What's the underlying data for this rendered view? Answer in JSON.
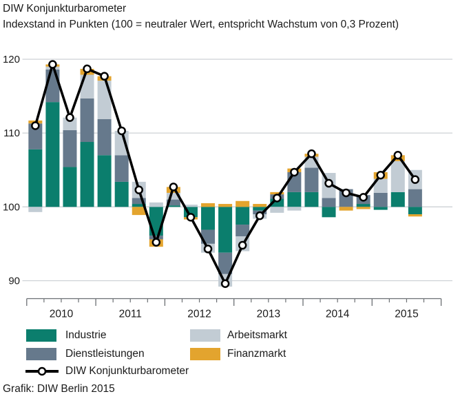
{
  "header": {
    "title": "DIW Konjunkturbarometer",
    "subtitle": "Indexstand in Punkten (100 = neutraler Wert, entspricht Wachstum von 0,3 Prozent)"
  },
  "footer": {
    "credit": "Grafik: DIW Berlin 2015"
  },
  "legend": {
    "items": [
      {
        "label": "Industrie",
        "color": "#0b7e6d"
      },
      {
        "label": "Dienstleistungen",
        "color": "#66798c"
      },
      {
        "label": "Arbeitsmarkt",
        "color": "#c2ccd4"
      },
      {
        "label": "Finanzmarkt",
        "color": "#e3a42e"
      }
    ],
    "line_item": {
      "label": "DIW Konjunkturbarometer",
      "color": "#000000"
    }
  },
  "chart_data": {
    "type": "bar",
    "subtype": "stacked-bars-with-line",
    "baseline": 100,
    "quarters": [
      "2010 Q1",
      "2010 Q2",
      "2010 Q3",
      "2010 Q4",
      "2011 Q1",
      "2011 Q2",
      "2011 Q3",
      "2011 Q4",
      "2012 Q1",
      "2012 Q2",
      "2012 Q3",
      "2012 Q4",
      "2013 Q1",
      "2013 Q2",
      "2013 Q3",
      "2013 Q4",
      "2014 Q1",
      "2014 Q2",
      "2014 Q3",
      "2014 Q4",
      "2015 Q1",
      "2015 Q2",
      "2015 Q3"
    ],
    "series": [
      {
        "name": "Industrie",
        "color": "#0b7e6d",
        "values": [
          7.8,
          14.2,
          5.4,
          8.8,
          7.0,
          3.4,
          0.4,
          -3.9,
          0.2,
          -1.4,
          -3.1,
          -6.2,
          -2.4,
          -0.5,
          1.1,
          2.0,
          2.0,
          -1.4,
          0.0,
          0.4,
          -0.4,
          2.0,
          -1.0
        ]
      },
      {
        "name": "Dienstleistungen",
        "color": "#66798c",
        "values": [
          3.5,
          4.4,
          5.0,
          5.9,
          4.9,
          3.6,
          0.8,
          -0.5,
          0.8,
          0.0,
          -1.9,
          -2.9,
          -1.6,
          -0.5,
          0.6,
          2.7,
          3.3,
          1.2,
          2.4,
          1.2,
          1.9,
          0.0,
          2.4
        ]
      },
      {
        "name": "Arbeitsmarkt",
        "color": "#c2ccd4",
        "values": [
          -0.7,
          0.4,
          1.7,
          3.2,
          5.2,
          3.3,
          2.2,
          0.6,
          0.9,
          0.3,
          -1.2,
          -1.7,
          -2.0,
          -0.6,
          -0.8,
          -0.5,
          1.5,
          3.4,
          0.0,
          0.0,
          1.9,
          4.2,
          2.6
        ]
      },
      {
        "name": "Finanzmarkt",
        "color": "#e3a42e",
        "values": [
          0.4,
          0.3,
          0.0,
          0.8,
          0.6,
          0.0,
          -1.1,
          -1.0,
          0.8,
          -0.3,
          0.5,
          0.4,
          0.8,
          0.4,
          0.3,
          0.5,
          0.4,
          0.0,
          -0.5,
          -0.3,
          0.9,
          0.8,
          -0.3
        ]
      }
    ],
    "line": {
      "name": "DIW Konjunkturbarometer",
      "color": "#000000",
      "values": [
        111.0,
        119.3,
        112.1,
        118.7,
        117.7,
        110.3,
        102.3,
        95.2,
        102.7,
        98.6,
        94.3,
        89.6,
        94.8,
        98.8,
        101.2,
        104.7,
        107.2,
        103.2,
        101.9,
        101.3,
        104.3,
        107.0,
        103.7
      ]
    },
    "title": "DIW Konjunkturbarometer",
    "xlabel": "",
    "ylabel": "Indexstand in Punkten",
    "x_tick_years": [
      "2010",
      "2011",
      "2012",
      "2013",
      "2014",
      "2015"
    ],
    "yticks": [
      90,
      100,
      110,
      120
    ],
    "ylim": [
      87.5,
      120.5
    ],
    "grid": true,
    "legend_position": "bottom"
  }
}
